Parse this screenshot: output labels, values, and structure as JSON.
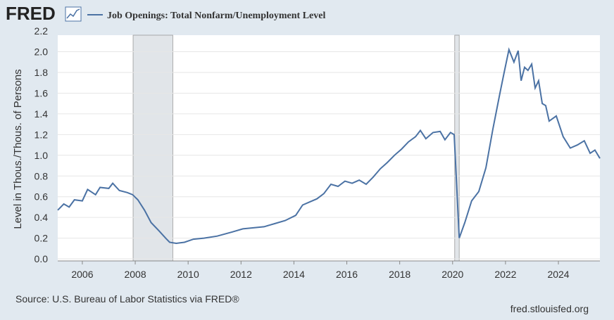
{
  "chart_data": {
    "type": "line",
    "brand": "FRED",
    "y_label": "Level in Thous./Thous. of Persons",
    "source": "Source: U.S. Bureau of Labor Statistics via FRED®",
    "url": "fred.stlouisfed.org",
    "xlim": [
      2005.07,
      2025.57
    ],
    "xticks": [
      2006,
      2008,
      2010,
      2012,
      2014,
      2016,
      2018,
      2020,
      2022,
      2024
    ],
    "ylim": [
      -0.02,
      2.16
    ],
    "yticks": [
      {
        "value": 0,
        "label": "0.0"
      },
      0.2,
      0.4,
      0.6,
      0.8,
      {
        "value": 1,
        "label": "1.0"
      },
      1.2,
      1.4,
      1.6,
      1.8,
      {
        "value": 2,
        "label": "2.0"
      },
      2.2
    ],
    "grid": true,
    "recessions": [
      [
        2007.92,
        2009.42
      ],
      [
        2020.08,
        2020.25
      ]
    ],
    "x": [
      2005.07,
      2005.3,
      2005.5,
      2005.7,
      2006.0,
      2006.2,
      2006.5,
      2006.67,
      2007.0,
      2007.15,
      2007.4,
      2007.7,
      2007.9,
      2008.1,
      2008.35,
      2008.6,
      2008.9,
      2009.15,
      2009.3,
      2009.55,
      2009.86,
      2010.2,
      2010.6,
      2011.1,
      2011.67,
      2012.07,
      2012.47,
      2012.87,
      2013.27,
      2013.67,
      2014.07,
      2014.33,
      2014.6,
      2014.87,
      2015.13,
      2015.4,
      2015.67,
      2015.93,
      2016.2,
      2016.47,
      2016.73,
      2017.0,
      2017.27,
      2017.53,
      2017.8,
      2018.07,
      2018.33,
      2018.6,
      2018.78,
      2018.99,
      2019.26,
      2019.53,
      2019.71,
      2019.92,
      2020.06,
      2020.17,
      2020.25,
      2020.46,
      2020.72,
      2020.99,
      2021.26,
      2021.52,
      2021.79,
      2021.95,
      2022.13,
      2022.32,
      2022.48,
      2022.59,
      2022.72,
      2022.85,
      2022.99,
      2023.12,
      2023.25,
      2023.39,
      2023.52,
      2023.65,
      2023.92,
      2024.18,
      2024.45,
      2024.72,
      2024.98,
      2025.2,
      2025.38,
      2025.57
    ],
    "series": [
      {
        "name": "Job Openings: Total Nonfarm/Unemployment Level",
        "color": "#4b72a4",
        "values": [
          0.47,
          0.53,
          0.5,
          0.57,
          0.56,
          0.67,
          0.62,
          0.69,
          0.68,
          0.73,
          0.66,
          0.64,
          0.62,
          0.57,
          0.47,
          0.35,
          0.27,
          0.2,
          0.16,
          0.15,
          0.16,
          0.19,
          0.2,
          0.22,
          0.26,
          0.29,
          0.3,
          0.31,
          0.34,
          0.37,
          0.42,
          0.52,
          0.55,
          0.58,
          0.63,
          0.72,
          0.7,
          0.75,
          0.73,
          0.76,
          0.72,
          0.79,
          0.87,
          0.93,
          1.0,
          1.06,
          1.13,
          1.18,
          1.24,
          1.16,
          1.22,
          1.23,
          1.15,
          1.22,
          1.2,
          0.62,
          0.2,
          0.35,
          0.56,
          0.65,
          0.88,
          1.25,
          1.6,
          1.8,
          2.02,
          1.9,
          2.01,
          1.72,
          1.85,
          1.82,
          1.88,
          1.65,
          1.72,
          1.5,
          1.48,
          1.33,
          1.38,
          1.18,
          1.07,
          1.1,
          1.14,
          1.02,
          1.05,
          0.97
        ]
      }
    ]
  }
}
